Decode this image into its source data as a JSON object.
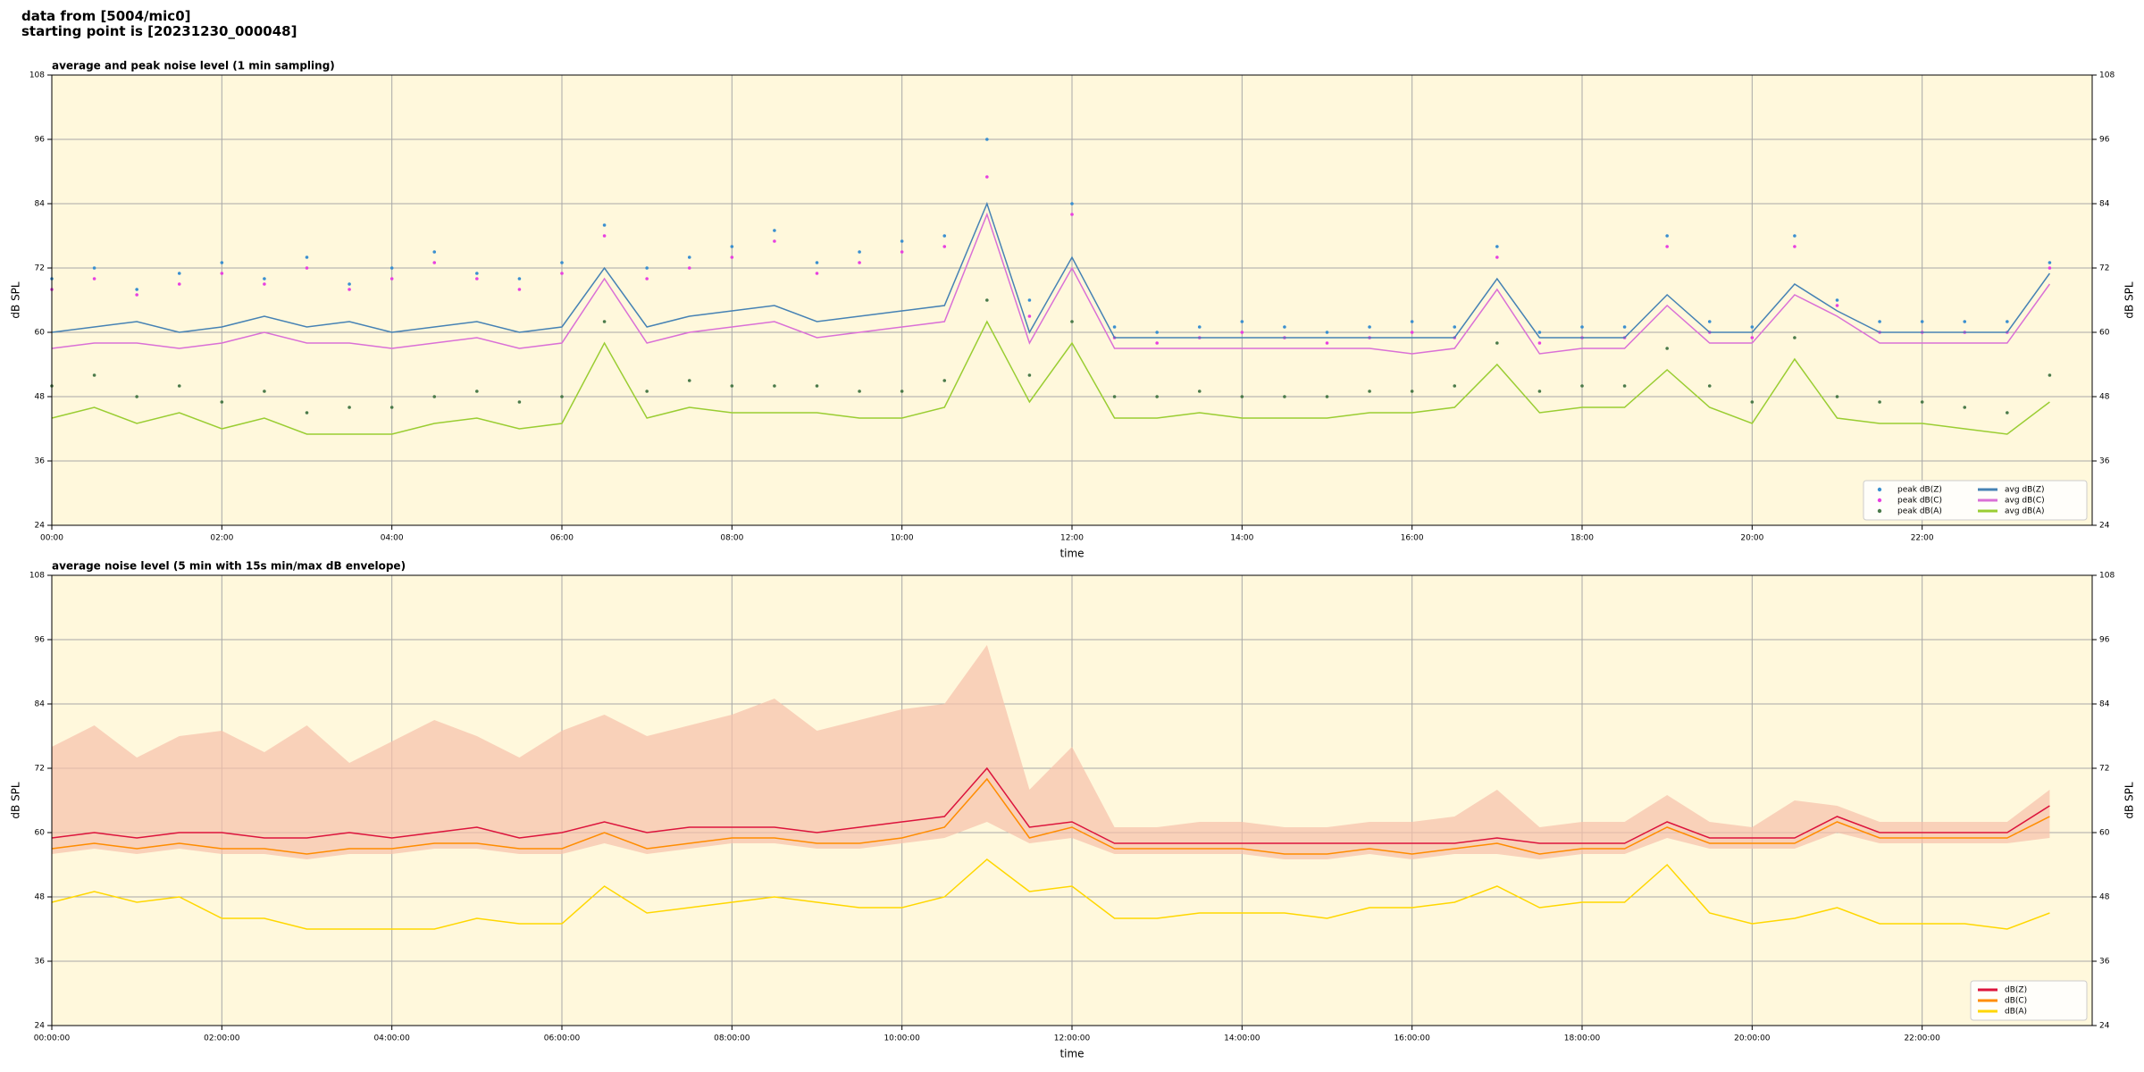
{
  "header": {
    "line1": "data from [5004/mic0]",
    "line2": "starting point is [20231230_000048]"
  },
  "chart_data": [
    {
      "type": "line",
      "title": "average and peak noise level (1 min sampling)",
      "xlabel": "time",
      "ylabel": "dB SPL",
      "xlim": [
        0,
        24
      ],
      "ylim": [
        24,
        108
      ],
      "yticks": [
        24,
        36,
        48,
        60,
        72,
        84,
        96,
        108
      ],
      "xticks": [
        {
          "value": 0,
          "label": "00:00"
        },
        {
          "value": 2,
          "label": "02:00"
        },
        {
          "value": 4,
          "label": "04:00"
        },
        {
          "value": 6,
          "label": "06:00"
        },
        {
          "value": 8,
          "label": "08:00"
        },
        {
          "value": 10,
          "label": "10:00"
        },
        {
          "value": 12,
          "label": "12:00"
        },
        {
          "value": 14,
          "label": "14:00"
        },
        {
          "value": 16,
          "label": "16:00"
        },
        {
          "value": 18,
          "label": "18:00"
        },
        {
          "value": 20,
          "label": "20:00"
        },
        {
          "value": 22,
          "label": "22:00"
        }
      ],
      "grid": true,
      "legend": "lower right",
      "background": "#fff8dc",
      "x": [
        0,
        0.5,
        1,
        1.5,
        2,
        2.5,
        3,
        3.5,
        4,
        4.5,
        5,
        5.5,
        6,
        6.5,
        7,
        7.5,
        8,
        8.5,
        9,
        9.5,
        10,
        10.5,
        11,
        11.5,
        12,
        12.5,
        13,
        13.5,
        14,
        14.5,
        15,
        15.5,
        16,
        16.5,
        17,
        17.5,
        18,
        18.5,
        19,
        19.5,
        20,
        20.5,
        21,
        21.5,
        22,
        22.5,
        23,
        23.5
      ],
      "series": [
        {
          "name": "peak dB(Z)",
          "type": "scatter",
          "color": "#3a8fd0",
          "values": [
            70,
            72,
            68,
            71,
            73,
            70,
            74,
            69,
            72,
            75,
            71,
            70,
            73,
            80,
            72,
            74,
            76,
            79,
            73,
            75,
            77,
            78,
            96,
            66,
            84,
            61,
            60,
            61,
            62,
            61,
            60,
            61,
            62,
            61,
            76,
            60,
            61,
            61,
            78,
            62,
            61,
            78,
            66,
            62,
            62,
            62,
            62,
            73
          ]
        },
        {
          "name": "peak dB(C)",
          "type": "scatter",
          "color": "#e840e0",
          "values": [
            68,
            70,
            67,
            69,
            71,
            69,
            72,
            68,
            70,
            73,
            70,
            68,
            71,
            78,
            70,
            72,
            74,
            77,
            71,
            73,
            75,
            76,
            89,
            63,
            82,
            59,
            58,
            59,
            60,
            59,
            58,
            59,
            60,
            59,
            74,
            58,
            59,
            59,
            76,
            60,
            59,
            76,
            65,
            60,
            60,
            60,
            60,
            72
          ]
        },
        {
          "name": "peak dB(A)",
          "type": "scatter",
          "color": "#4a7a4a",
          "values": [
            50,
            52,
            48,
            50,
            47,
            49,
            45,
            46,
            46,
            48,
            49,
            47,
            48,
            62,
            49,
            51,
            50,
            50,
            50,
            49,
            49,
            51,
            66,
            52,
            62,
            48,
            48,
            49,
            48,
            48,
            48,
            49,
            49,
            50,
            58,
            49,
            50,
            50,
            57,
            50,
            47,
            59,
            48,
            47,
            47,
            46,
            45,
            52
          ]
        },
        {
          "name": "avg dB(Z)",
          "type": "line",
          "color": "#4682b4",
          "values": [
            60,
            61,
            62,
            60,
            61,
            63,
            61,
            62,
            60,
            61,
            62,
            60,
            61,
            72,
            61,
            63,
            64,
            65,
            62,
            63,
            64,
            65,
            84,
            60,
            74,
            59,
            59,
            59,
            59,
            59,
            59,
            59,
            59,
            59,
            70,
            59,
            59,
            59,
            67,
            60,
            60,
            69,
            64,
            60,
            60,
            60,
            60,
            71
          ]
        },
        {
          "name": "avg dB(C)",
          "type": "line",
          "color": "#da70d6",
          "values": [
            57,
            58,
            58,
            57,
            58,
            60,
            58,
            58,
            57,
            58,
            59,
            57,
            58,
            70,
            58,
            60,
            61,
            62,
            59,
            60,
            61,
            62,
            82,
            58,
            72,
            57,
            57,
            57,
            57,
            57,
            57,
            57,
            56,
            57,
            68,
            56,
            57,
            57,
            65,
            58,
            58,
            67,
            63,
            58,
            58,
            58,
            58,
            69
          ]
        },
        {
          "name": "avg dB(A)",
          "type": "line",
          "color": "#9acd32",
          "values": [
            44,
            46,
            43,
            45,
            42,
            44,
            41,
            41,
            41,
            43,
            44,
            42,
            43,
            58,
            44,
            46,
            45,
            45,
            45,
            44,
            44,
            46,
            62,
            47,
            58,
            44,
            44,
            45,
            44,
            44,
            44,
            45,
            45,
            46,
            54,
            45,
            46,
            46,
            53,
            46,
            43,
            55,
            44,
            43,
            43,
            42,
            41,
            47
          ]
        }
      ]
    },
    {
      "type": "line",
      "title": "average noise level (5 min with 15s min/max dB envelope)",
      "xlabel": "time",
      "ylabel": "dB SPL",
      "xlim": [
        0,
        24
      ],
      "ylim": [
        24,
        108
      ],
      "yticks": [
        24,
        36,
        48,
        60,
        72,
        84,
        96,
        108
      ],
      "xticks": [
        {
          "value": 0,
          "label": "00:00:00"
        },
        {
          "value": 2,
          "label": "02:00:00"
        },
        {
          "value": 4,
          "label": "04:00:00"
        },
        {
          "value": 6,
          "label": "06:00:00"
        },
        {
          "value": 8,
          "label": "08:00:00"
        },
        {
          "value": 10,
          "label": "10:00:00"
        },
        {
          "value": 12,
          "label": "12:00:00"
        },
        {
          "value": 14,
          "label": "14:00:00"
        },
        {
          "value": 16,
          "label": "16:00:00"
        },
        {
          "value": 18,
          "label": "18:00:00"
        },
        {
          "value": 20,
          "label": "20:00:00"
        },
        {
          "value": 22,
          "label": "22:00:00"
        }
      ],
      "grid": true,
      "legend": "lower right",
      "background": "#fff8dc",
      "x": [
        0,
        0.5,
        1,
        1.5,
        2,
        2.5,
        3,
        3.5,
        4,
        4.5,
        5,
        5.5,
        6,
        6.5,
        7,
        7.5,
        8,
        8.5,
        9,
        9.5,
        10,
        10.5,
        11,
        11.5,
        12,
        12.5,
        13,
        13.5,
        14,
        14.5,
        15,
        15.5,
        16,
        16.5,
        17,
        17.5,
        18,
        18.5,
        19,
        19.5,
        20,
        20.5,
        21,
        21.5,
        22,
        22.5,
        23,
        23.5
      ],
      "envelope": {
        "color": "#f6c0aa",
        "upper": [
          76,
          80,
          74,
          78,
          79,
          75,
          80,
          73,
          77,
          81,
          78,
          74,
          79,
          82,
          78,
          80,
          82,
          85,
          79,
          81,
          83,
          84,
          95,
          68,
          76,
          61,
          61,
          62,
          62,
          61,
          61,
          62,
          62,
          63,
          68,
          61,
          62,
          62,
          67,
          62,
          61,
          66,
          65,
          62,
          62,
          62,
          62,
          68
        ],
        "lower": [
          56,
          57,
          56,
          57,
          56,
          56,
          55,
          56,
          56,
          57,
          57,
          56,
          56,
          58,
          56,
          57,
          58,
          58,
          57,
          57,
          58,
          59,
          62,
          58,
          59,
          56,
          56,
          56,
          56,
          55,
          55,
          56,
          55,
          56,
          56,
          55,
          56,
          56,
          59,
          57,
          57,
          57,
          60,
          58,
          58,
          58,
          58,
          59
        ]
      },
      "series": [
        {
          "name": "dB(Z)",
          "type": "line",
          "color": "#dc143c",
          "values": [
            59,
            60,
            59,
            60,
            60,
            59,
            59,
            60,
            59,
            60,
            61,
            59,
            60,
            62,
            60,
            61,
            61,
            61,
            60,
            61,
            62,
            63,
            72,
            61,
            62,
            58,
            58,
            58,
            58,
            58,
            58,
            58,
            58,
            58,
            59,
            58,
            58,
            58,
            62,
            59,
            59,
            59,
            63,
            60,
            60,
            60,
            60,
            65
          ]
        },
        {
          "name": "dB(C)",
          "type": "line",
          "color": "#ff8c00",
          "values": [
            57,
            58,
            57,
            58,
            57,
            57,
            56,
            57,
            57,
            58,
            58,
            57,
            57,
            60,
            57,
            58,
            59,
            59,
            58,
            58,
            59,
            61,
            70,
            59,
            61,
            57,
            57,
            57,
            57,
            56,
            56,
            57,
            56,
            57,
            58,
            56,
            57,
            57,
            61,
            58,
            58,
            58,
            62,
            59,
            59,
            59,
            59,
            63
          ]
        },
        {
          "name": "dB(A)",
          "type": "line",
          "color": "#ffd700",
          "values": [
            47,
            49,
            47,
            48,
            44,
            44,
            42,
            42,
            42,
            42,
            44,
            43,
            43,
            50,
            45,
            46,
            47,
            48,
            47,
            46,
            46,
            48,
            55,
            49,
            50,
            44,
            44,
            45,
            45,
            45,
            44,
            46,
            46,
            47,
            50,
            46,
            47,
            47,
            54,
            45,
            43,
            44,
            46,
            43,
            43,
            43,
            42,
            45
          ]
        }
      ]
    }
  ]
}
